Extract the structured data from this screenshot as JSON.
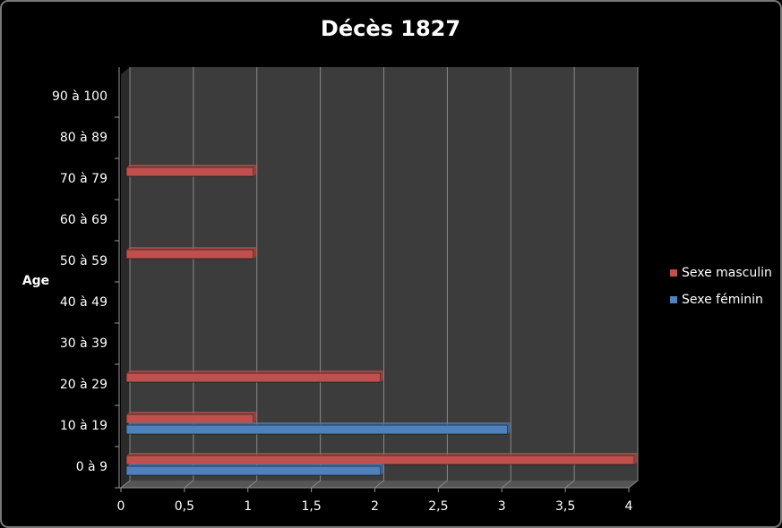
{
  "chart_data": {
    "type": "hbar",
    "title": "Décès 1827",
    "y_label": "Age",
    "categories": [
      "0 à 9",
      "10 à 19",
      "20 à 29",
      "30 à 39",
      "40 à 49",
      "50 à 59",
      "60 à 69",
      "70 à 79",
      "80 à 89",
      "90 à 100"
    ],
    "series": [
      {
        "name": "Sexe masculin",
        "color": "#c0504d",
        "values": [
          4,
          1,
          2,
          0,
          0,
          1,
          0,
          1,
          0,
          0
        ]
      },
      {
        "name": "Sexe féminin",
        "color": "#4f81bd",
        "values": [
          2,
          3,
          0,
          0,
          0,
          0,
          0,
          0,
          0,
          0
        ]
      }
    ],
    "xlim": [
      0,
      4
    ],
    "xticks": [
      0,
      {
        "value": 0.5,
        "label": "0,5"
      },
      1,
      {
        "value": 1.5,
        "label": "1,5"
      },
      2,
      {
        "value": 2.5,
        "label": "2,5"
      },
      3,
      {
        "value": 3.5,
        "label": "3,5"
      },
      4
    ],
    "grid": true,
    "legend": "right"
  }
}
